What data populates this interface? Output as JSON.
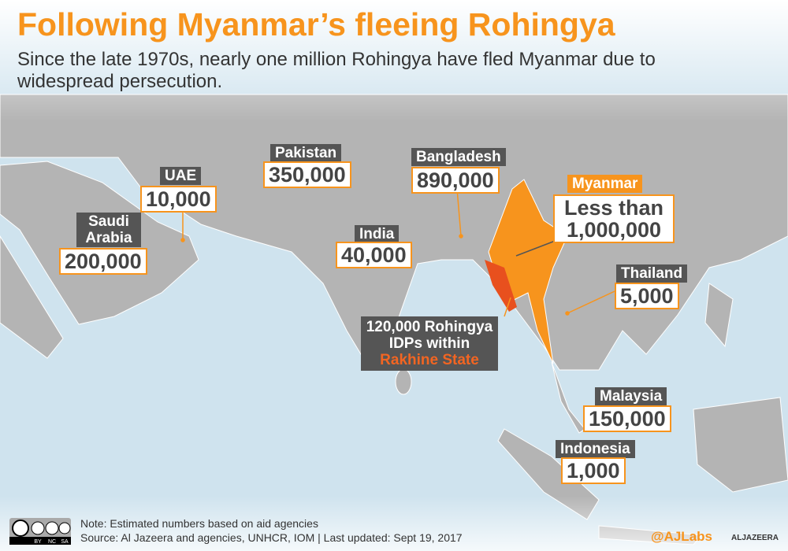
{
  "header": {
    "title": "Following Myanmar’s fleeing Rohingya",
    "subtitle": "Since the late 1970s, nearly one million Rohingya have fled Myanmar due to widespread persecution."
  },
  "labels": [
    {
      "name": "Saudi Arabia",
      "count": "200,000"
    },
    {
      "name": "UAE",
      "count": "10,000"
    },
    {
      "name": "Pakistan",
      "count": "350,000"
    },
    {
      "name": "India",
      "count": "40,000"
    },
    {
      "name": "Bangladesh",
      "count": "890,000"
    },
    {
      "name": "Thailand",
      "count": "5,000"
    },
    {
      "name": "Malaysia",
      "count": "150,000"
    },
    {
      "name": "Indonesia",
      "count": "1,000"
    }
  ],
  "myanmar": {
    "name": "Myanmar",
    "count": "Less than 1,000,000"
  },
  "idp": {
    "text": "120,000 Rohingya IDPs within",
    "highlight": "Rakhine State"
  },
  "footer": {
    "note": "Note: Estimated numbers based on aid agencies",
    "source": "Source: Al Jazeera and agencies, UNHCR, IOM | Last updated: Sept 19, 2017",
    "handle": "@AJLabs",
    "logo": "ALJAZEERA",
    "license": [
      "BY",
      "NC",
      "SA"
    ]
  }
}
